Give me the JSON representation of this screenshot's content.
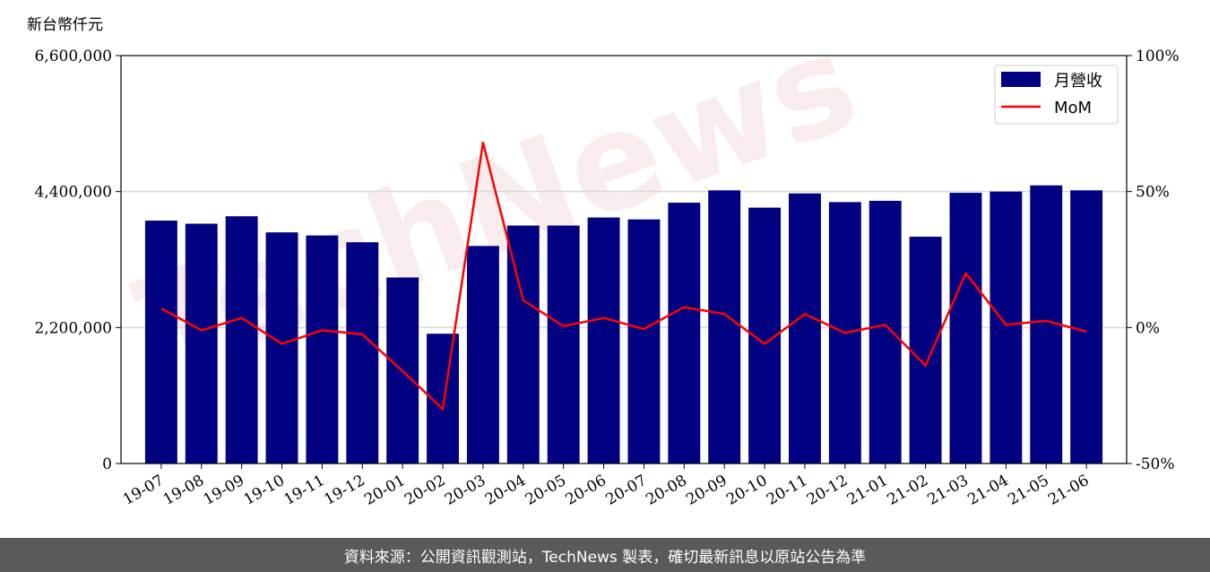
{
  "chart_data": {
    "type": "bar",
    "y_unit_label": "新台幣仟元",
    "categories": [
      "19-07",
      "19-08",
      "19-09",
      "19-10",
      "19-11",
      "19-12",
      "20-01",
      "20-02",
      "20-03",
      "20-04",
      "20-05",
      "20-06",
      "20-07",
      "20-08",
      "20-09",
      "20-10",
      "20-11",
      "20-12",
      "21-01",
      "21-02",
      "21-03",
      "21-04",
      "21-05",
      "21-06"
    ],
    "series": [
      {
        "name": "月營收",
        "type": "bar",
        "axis": "left",
        "color": "#000080",
        "values": [
          3930000,
          3880000,
          4000000,
          3740000,
          3690000,
          3580000,
          3010000,
          2100000,
          3520000,
          3850000,
          3850000,
          3980000,
          3950000,
          4220000,
          4420000,
          4140000,
          4370000,
          4230000,
          4250000,
          3670000,
          4380000,
          4400000,
          4500000,
          4420000
        ]
      },
      {
        "name": "MoM",
        "type": "line",
        "axis": "right",
        "unit": "%",
        "color": "#ff0000",
        "values": [
          7,
          -1,
          3.5,
          -6,
          -1,
          -2.5,
          -16,
          -30,
          68,
          10,
          0.5,
          3.5,
          -0.5,
          7.5,
          5,
          -6,
          5,
          -2,
          1,
          -14,
          20,
          1,
          2.5,
          -1.5
        ]
      }
    ],
    "y_left": {
      "min": 0,
      "max": 6600000,
      "ticks": [
        "0",
        "2,200,000",
        "4,400,000",
        "6,600,000"
      ]
    },
    "y_right": {
      "min": -50,
      "max": 100,
      "ticks": [
        "-50%",
        "0%",
        "50%",
        "100%"
      ]
    },
    "grid": "horizontal",
    "legend": {
      "position": "top-right",
      "entries": [
        "月營收",
        "MoM"
      ]
    }
  },
  "watermark": "TechNews",
  "footer": {
    "source_text": "資料來源：公開資訊觀測站，TechNews 製表，確切最新訊息以原站公告為準"
  }
}
